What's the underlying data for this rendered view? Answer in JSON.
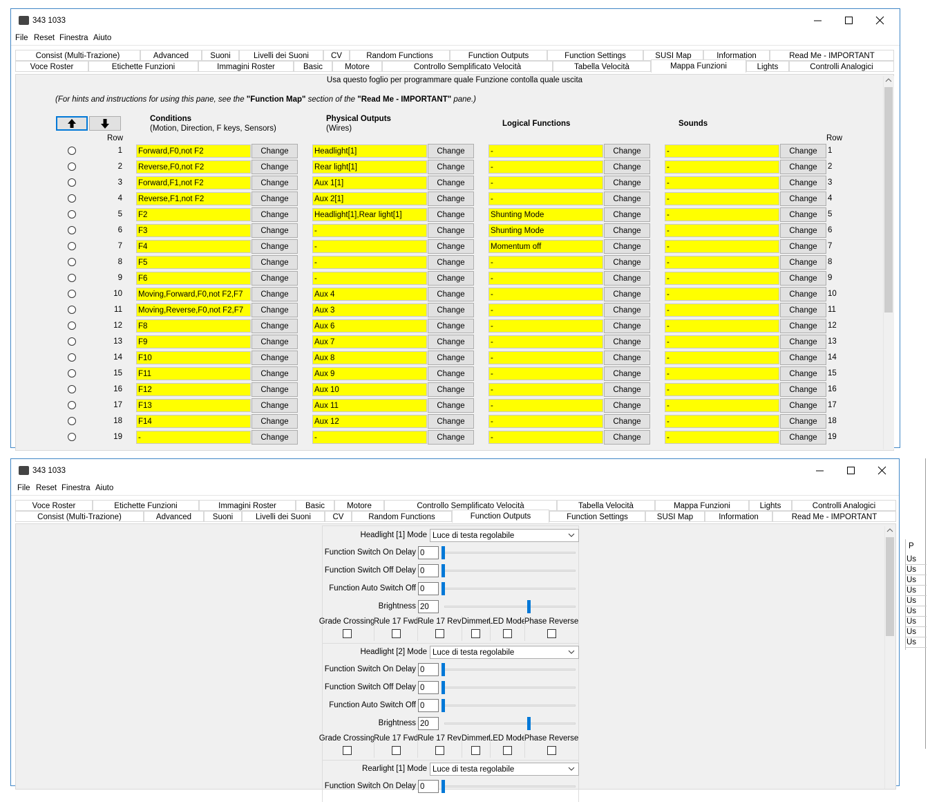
{
  "windows": [
    {
      "title": "343 1033",
      "menu": [
        "File",
        "Reset",
        "Finestra",
        "Aiuto"
      ],
      "tab_rows": [
        [
          "Consist (Multi-Trazione)",
          "Advanced",
          "Suoni",
          "Livelli dei Suoni",
          "CV",
          "Random Functions",
          "Function Outputs",
          "Function Settings",
          "SUSI Map",
          "Information",
          "Read Me - IMPORTANT"
        ],
        [
          "Voce Roster",
          "Etichette Funzioni",
          "Immagini Roster",
          "Basic",
          "Motore",
          "Controllo Semplificato Velocità",
          "Tabella Velocità",
          "Mappa Funzioni",
          "Lights",
          "Controlli Analogici"
        ]
      ],
      "selected_tab": "Mappa Funzioni",
      "function_map": {
        "hint": "Usa questo foglio per programmare quale Funzione contolla quale uscita",
        "instructions": [
          "(For hints and instructions for using this pane, see the ",
          "\"Function Map\"",
          " section of the ",
          "\"Read Me - IMPORTANT\"",
          " pane.)"
        ],
        "columns": [
          {
            "title": "Conditions",
            "subtitle": "(Motion, Direction, F keys, Sensors)"
          },
          {
            "title": "Physical Outputs",
            "subtitle": "(Wires)"
          },
          {
            "title": "Logical Functions"
          },
          {
            "title": "Sounds"
          }
        ],
        "row_label": "Row",
        "button_label": "Change",
        "rows": [
          {
            "row": 1,
            "cells": [
              "Forward,F0,not F2",
              "Headlight[1]",
              "-",
              "-"
            ]
          },
          {
            "row": 2,
            "cells": [
              "Reverse,F0,not F2",
              "Rear light[1]",
              "-",
              "-"
            ]
          },
          {
            "row": 3,
            "cells": [
              "Forward,F1,not F2",
              "Aux 1[1]",
              "-",
              "-"
            ]
          },
          {
            "row": 4,
            "cells": [
              "Reverse,F1,not F2",
              "Aux 2[1]",
              "-",
              "-"
            ]
          },
          {
            "row": 5,
            "cells": [
              "F2",
              "Headlight[1],Rear light[1]",
              "Shunting Mode",
              "-"
            ]
          },
          {
            "row": 6,
            "cells": [
              "F3",
              "-",
              "Shunting Mode",
              "-"
            ]
          },
          {
            "row": 7,
            "cells": [
              "F4",
              "-",
              "Momentum off",
              "-"
            ]
          },
          {
            "row": 8,
            "cells": [
              "F5",
              "-",
              "-",
              "-"
            ]
          },
          {
            "row": 9,
            "cells": [
              "F6",
              "-",
              "-",
              "-"
            ]
          },
          {
            "row": 10,
            "cells": [
              "Moving,Forward,F0,not F2,F7",
              "Aux 4",
              "-",
              "-"
            ]
          },
          {
            "row": 11,
            "cells": [
              "Moving,Reverse,F0,not F2,F7",
              "Aux 3",
              "-",
              "-"
            ]
          },
          {
            "row": 12,
            "cells": [
              "F8",
              "Aux 6",
              "-",
              "-"
            ]
          },
          {
            "row": 13,
            "cells": [
              "F9",
              "Aux 7",
              "-",
              "-"
            ]
          },
          {
            "row": 14,
            "cells": [
              "F10",
              "Aux 8",
              "-",
              "-"
            ]
          },
          {
            "row": 15,
            "cells": [
              "F11",
              "Aux 9",
              "-",
              "-"
            ]
          },
          {
            "row": 16,
            "cells": [
              "F12",
              "Aux 10",
              "-",
              "-"
            ]
          },
          {
            "row": 17,
            "cells": [
              "F13",
              "Aux 11",
              "-",
              "-"
            ]
          },
          {
            "row": 18,
            "cells": [
              "F14",
              "Aux 12",
              "-",
              "-"
            ]
          },
          {
            "row": 19,
            "cells": [
              "-",
              "-",
              "-",
              "-"
            ]
          }
        ]
      }
    },
    {
      "title": "343 1033",
      "menu": [
        "File",
        "Reset",
        "Finestra",
        "Aiuto"
      ],
      "tab_rows": [
        [
          "Voce Roster",
          "Etichette Funzioni",
          "Immagini Roster",
          "Basic",
          "Motore",
          "Controllo Semplificato Velocità",
          "Tabella Velocità",
          "Mappa Funzioni",
          "Lights",
          "Controlli Analogici"
        ],
        [
          "Consist (Multi-Trazione)",
          "Advanced",
          "Suoni",
          "Livelli dei Suoni",
          "CV",
          "Random Functions",
          "Function Outputs",
          "Function Settings",
          "SUSI Map",
          "Information",
          "Read Me - IMPORTANT"
        ]
      ],
      "selected_tab": "Function Outputs",
      "function_outputs": {
        "groups": [
          {
            "mode_label": "Headlight [1] Mode",
            "mode": "Luce di testa regolabile",
            "fields": [
              {
                "label": "Function Switch On Delay",
                "value": 0
              },
              {
                "label": "Function Switch Off Delay",
                "value": 0
              },
              {
                "label": "Function Auto Switch Off",
                "value": 0
              },
              {
                "label": "Brightness",
                "value": 20
              }
            ],
            "options": [
              "Grade Crossing",
              "Rule 17 Fwd",
              "Rule 17 Rev",
              "Dimmer",
              "LED Mode",
              "Phase Reverse"
            ]
          },
          {
            "mode_label": "Headlight [2] Mode",
            "mode": "Luce di testa regolabile",
            "fields": [
              {
                "label": "Function Switch On Delay",
                "value": 0
              },
              {
                "label": "Function Switch Off Delay",
                "value": 0
              },
              {
                "label": "Function Auto Switch Off",
                "value": 0
              },
              {
                "label": "Brightness",
                "value": 20
              }
            ],
            "options": [
              "Grade Crossing",
              "Rule 17 Fwd",
              "Rule 17 Rev",
              "Dimmer",
              "LED Mode",
              "Phase Reverse"
            ]
          },
          {
            "mode_label": "Rearlight [1] Mode",
            "mode": "Luce di testa regolabile",
            "fields": [
              {
                "label": "Function Switch On Delay",
                "value": 0
              }
            ]
          }
        ]
      }
    }
  ],
  "background_window": {
    "header": "P",
    "rows": [
      "Us",
      "Us",
      "Us",
      "Us",
      "Us",
      "Us",
      "Us",
      "Us",
      "Us"
    ]
  }
}
